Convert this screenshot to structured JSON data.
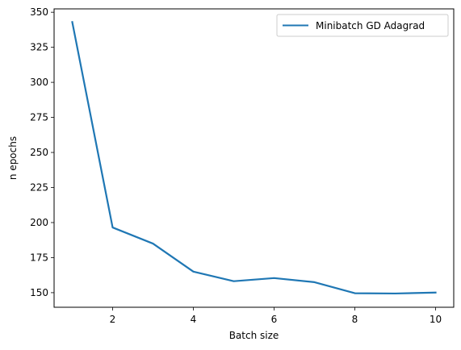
{
  "chart_data": {
    "type": "line",
    "title": "",
    "xlabel": "Batch size",
    "ylabel": "n epochs",
    "xlim": [
      0.55,
      10.45
    ],
    "ylim": [
      139.6,
      352.4
    ],
    "xticks": [
      2,
      4,
      6,
      8,
      10
    ],
    "yticks": [
      150,
      175,
      200,
      225,
      250,
      275,
      300,
      325,
      350
    ],
    "grid": false,
    "legend": {
      "placement": "upper right"
    },
    "series": [
      {
        "name": "Minibatch GD Adagrad",
        "color": "#1f77b4",
        "x": [
          1,
          2,
          3,
          4,
          5,
          6,
          7,
          8,
          9,
          10
        ],
        "y": [
          343,
          196.5,
          185,
          165,
          158.2,
          160.4,
          157.5,
          149.6,
          149.4,
          150.1
        ]
      }
    ]
  }
}
